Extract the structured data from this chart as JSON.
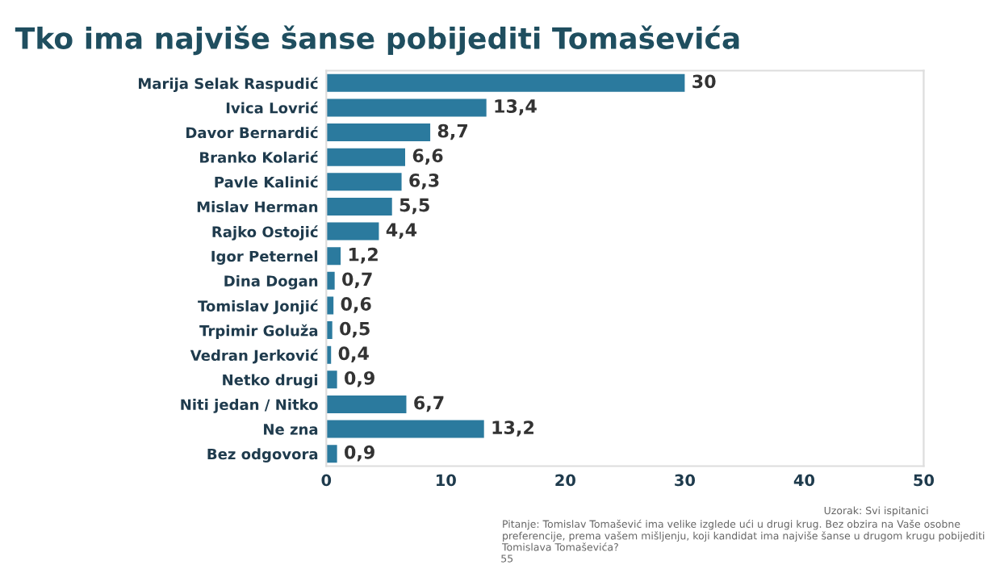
{
  "chart_data": {
    "type": "bar",
    "orientation": "horizontal",
    "title": "Tko ima najviše šanse pobijediti Tomaševića",
    "categories": [
      "Marija Selak Raspudić",
      "Ivica Lovrić",
      "Davor Bernardić",
      "Branko Kolarić",
      "Pavle Kalinić",
      "Mislav Herman",
      "Rajko Ostojić",
      "Igor Peternel",
      "Dina Dogan",
      "Tomislav Jonjić",
      "Trpimir Goluža",
      "Vedran Jerković",
      "Netko drugi",
      "Niti jedan / Nitko",
      "Ne zna",
      "Bez odgovora"
    ],
    "values": [
      30,
      13.4,
      8.7,
      6.6,
      6.3,
      5.5,
      4.4,
      1.2,
      0.7,
      0.6,
      0.5,
      0.4,
      0.9,
      6.7,
      13.2,
      0.9
    ],
    "value_labels": [
      "30",
      "13,4",
      "8,7",
      "6,6",
      "6,3",
      "5,5",
      "4,4",
      "1,2",
      "0,7",
      "0,6",
      "0,5",
      "0,4",
      "0,9",
      "6,7",
      "13,2",
      "0,9"
    ],
    "color": "#2b7a9e",
    "xlim": [
      0,
      50
    ],
    "xticks": [
      0,
      10,
      20,
      30,
      40,
      50
    ],
    "grid": false,
    "annotations": [
      "Uzorak: Svi ispitanici",
      "Pitanje: Tomislav Tomašević ima velike izglede ući u drugi krug. Bez obzira na Vaše osobne preferencije, prema vašem mišljenju, koji kandidat ima najviše šanse u drugom krugu pobijediti Tomislava Tomaševića?",
      "55"
    ]
  }
}
